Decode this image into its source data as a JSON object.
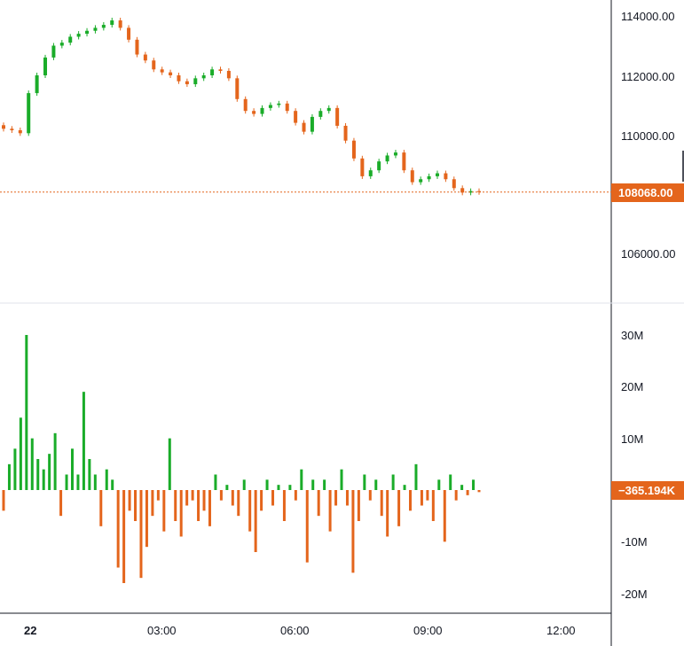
{
  "colors": {
    "up": "#1aac29",
    "down": "#e4651c",
    "price_line": "#e4651c",
    "badge_bg": "#e4651c",
    "axis_line": "#131722",
    "separator": "#e0e3eb"
  },
  "chart_data": [
    {
      "type": "candlestick",
      "title": "",
      "y_ticks": [
        "114000.00",
        "112000.00",
        "110000.00",
        "106000.00"
      ],
      "ylim": [
        104700,
        114700
      ],
      "last_price": 108068,
      "last_price_label": "108068.00",
      "x_ticks": [
        "22",
        "03:00",
        "06:00",
        "09:00",
        "12:00"
      ],
      "close_series": [
        110200,
        110150,
        110050,
        111400,
        112000,
        112600,
        113000,
        113100,
        113300,
        113400,
        113500,
        113600,
        113700,
        113850,
        113600,
        113200,
        112700,
        112500,
        112200,
        112100,
        112000,
        111800,
        111700,
        111900,
        112000,
        112200,
        112150,
        111900,
        111200,
        110800,
        110700,
        110900,
        111000,
        111050,
        110800,
        110400,
        110100,
        110600,
        110800,
        110900,
        110300,
        109800,
        109200,
        108600,
        108800,
        109100,
        109300,
        109400,
        108800,
        108400,
        108500,
        108600,
        108700,
        108500,
        108200,
        108050,
        108100,
        108068
      ]
    },
    {
      "type": "bar",
      "title": "",
      "y_ticks": [
        "30M",
        "20M",
        "10M",
        "-10M",
        "-20M"
      ],
      "ylim": [
        -24000000,
        34000000
      ],
      "last_value_label": "−365.194K",
      "values_M": [
        -4,
        5,
        8,
        14,
        30,
        10,
        6,
        4,
        7,
        11,
        -5,
        3,
        8,
        3,
        19,
        6,
        3,
        -7,
        4,
        2,
        -15,
        -18,
        -4,
        -6,
        -17,
        -11,
        -5,
        -2,
        -8,
        10,
        -6,
        -9,
        -3,
        -2,
        -6,
        -4,
        -7,
        3,
        -2,
        1,
        -3,
        -5,
        2,
        -8,
        -12,
        -4,
        2,
        -3,
        1,
        -6,
        1,
        -2,
        4,
        -14,
        2,
        -5,
        2,
        -8,
        -3,
        4,
        -3,
        -16,
        -6,
        3,
        -2,
        2,
        -5,
        -9,
        3,
        -7,
        1,
        -4,
        5,
        -3,
        -2,
        -6,
        2,
        -10,
        3,
        -2,
        1,
        -1,
        2,
        -0.4
      ]
    }
  ]
}
